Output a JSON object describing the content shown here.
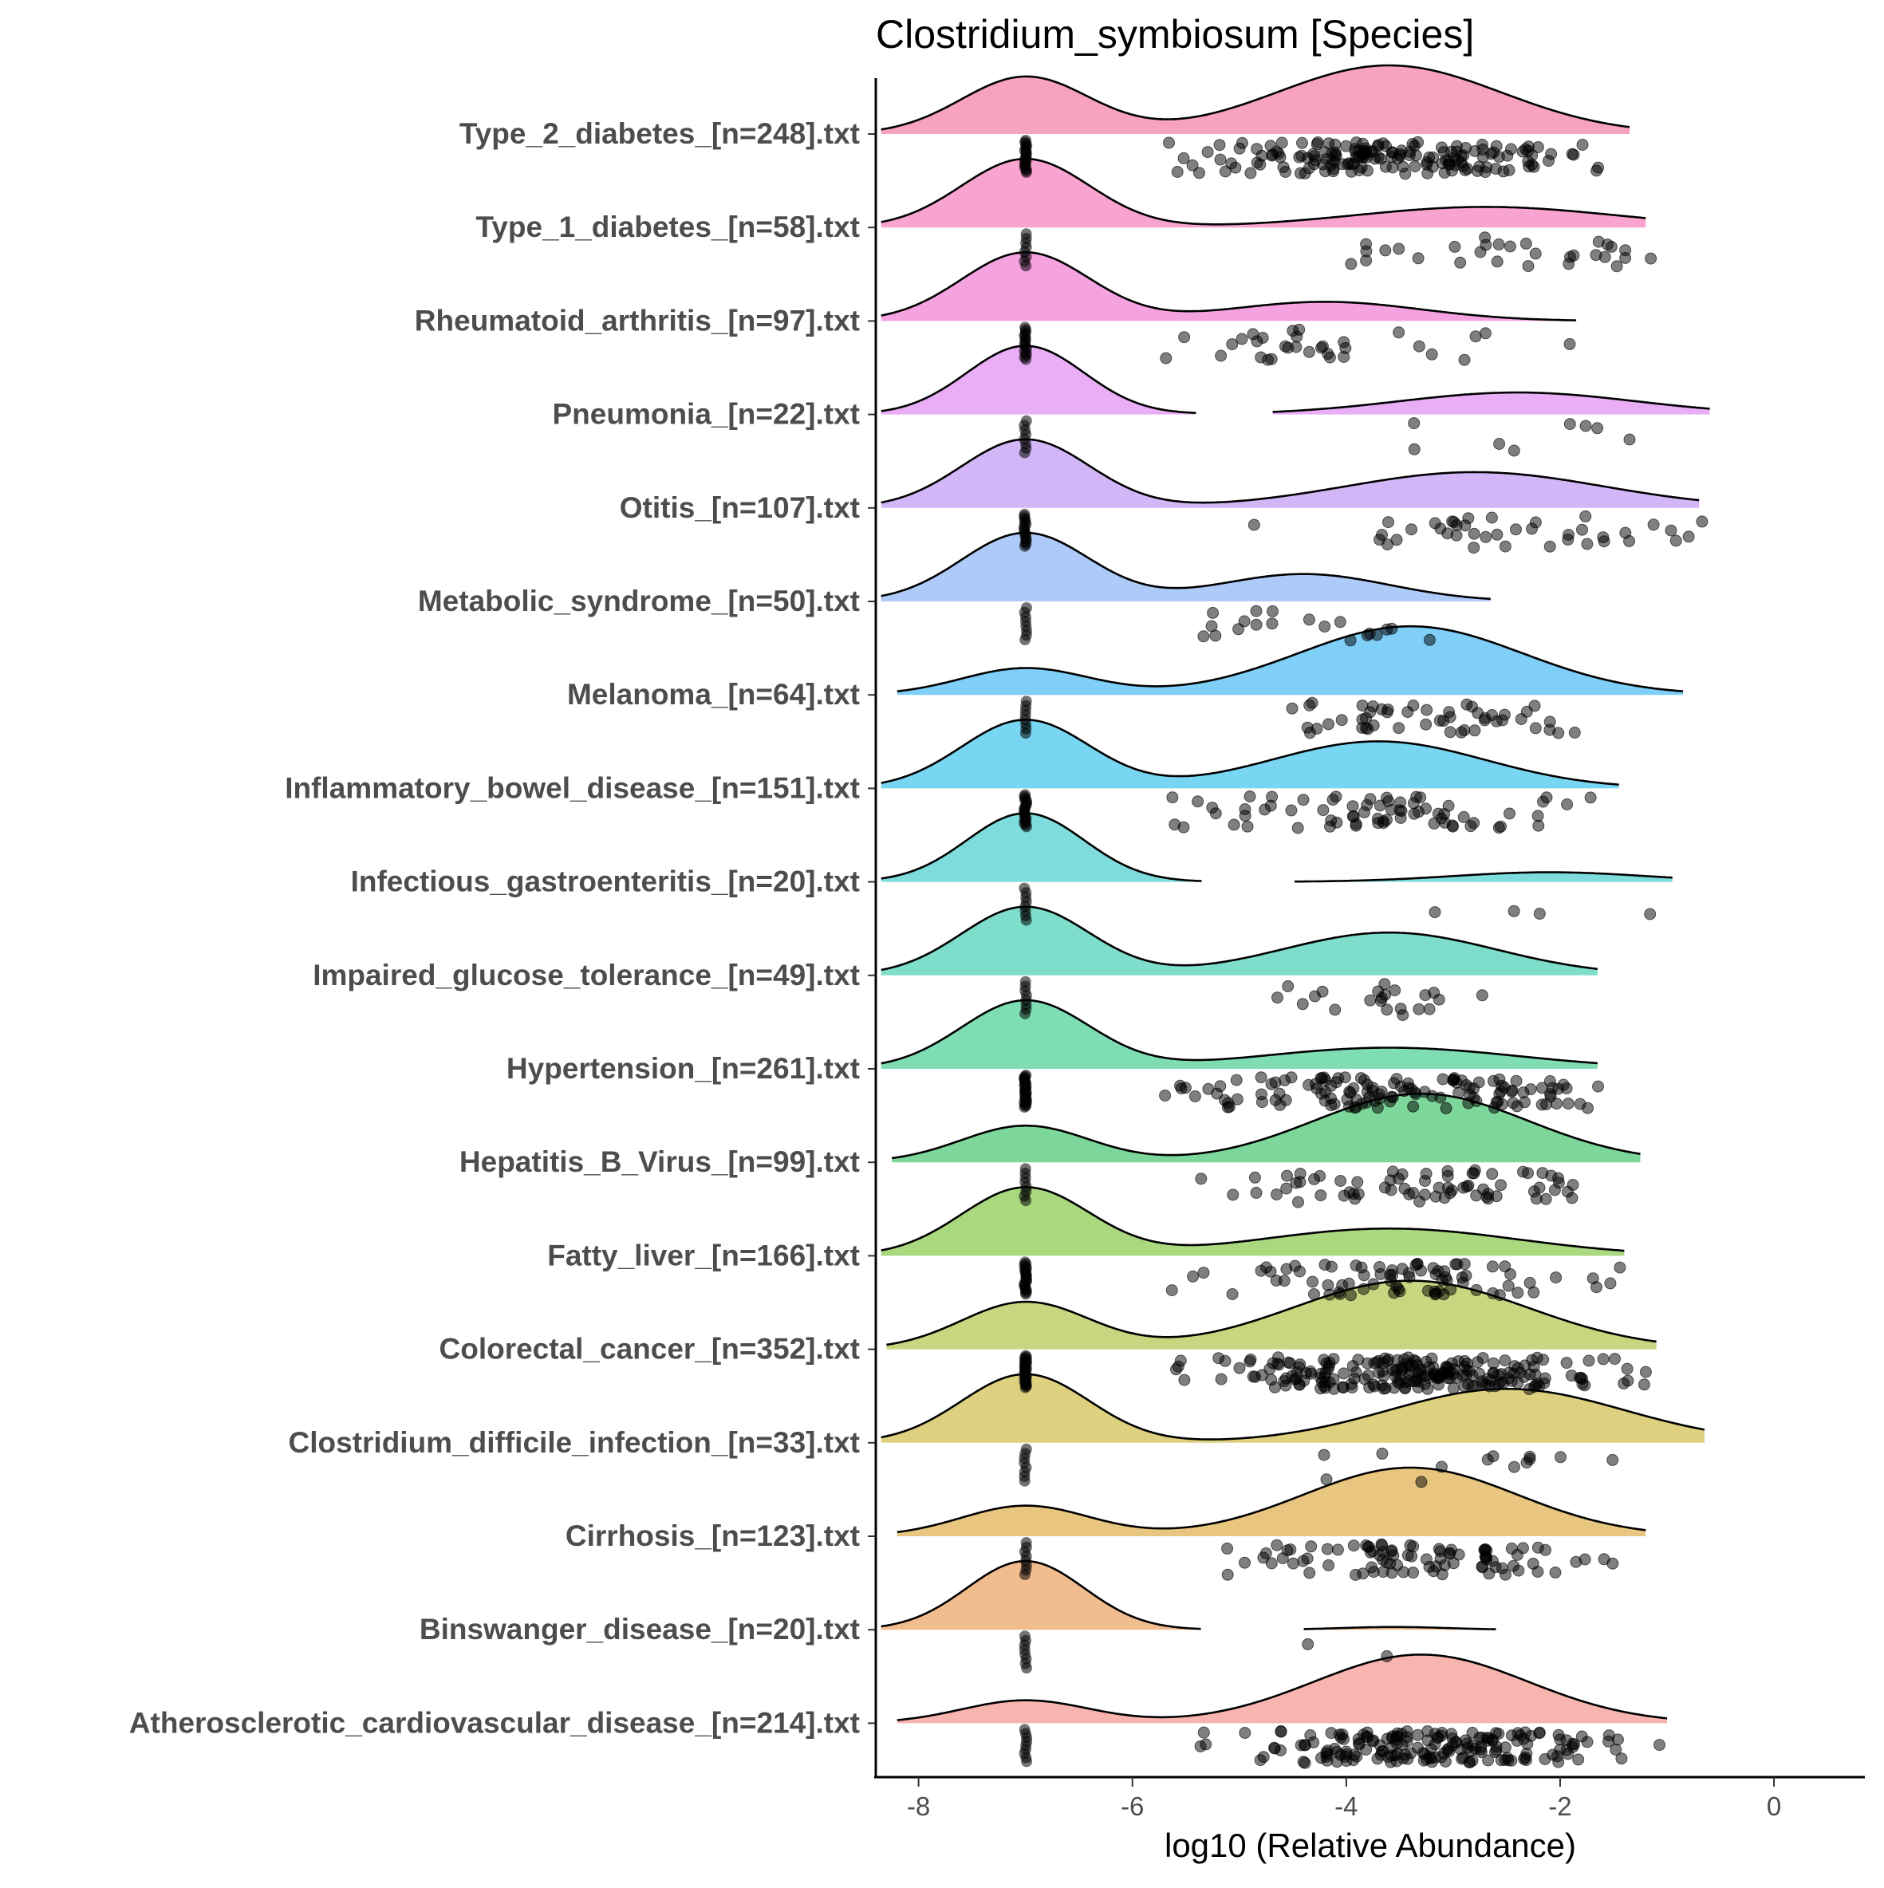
{
  "chart_data": {
    "type": "raincloud",
    "title": "Clostridium_symbiosum [Species]",
    "xlabel": "log10 (Relative Abundance)",
    "ylabel": "",
    "xlim": [
      -8.4,
      0.85
    ],
    "x_ticks": [
      -8,
      -6,
      -4,
      -2,
      0
    ],
    "x_tick_labels": [
      "-8",
      "-6",
      "-4",
      "-2",
      "0"
    ],
    "zero_value": -7,
    "grid": false,
    "legend": "none",
    "series": [
      {
        "name": "Type_2_diabetes_[n=248].txt",
        "n": 248,
        "color": "#F8A3BE",
        "n_nonzero": 170,
        "density": {
          "zero_w": 0.6,
          "zero_sd": 0.6,
          "high_mean": -3.6,
          "high_sd": 1.05,
          "high_w": 0.72,
          "xmin": -8.35,
          "xmax": -1.35
        }
      },
      {
        "name": "Type_1_diabetes_[n=58].txt",
        "n": 58,
        "color": "#F9A3D0",
        "n_nonzero": 30,
        "density": {
          "zero_w": 1.0,
          "zero_sd": 0.6,
          "high_mean": -2.7,
          "high_sd": 1.2,
          "high_w": 0.3,
          "xmin": -8.35,
          "xmax": -1.2
        }
      },
      {
        "name": "Rheumatoid_arthritis_[n=97].txt",
        "n": 97,
        "color": "#F4A2E0",
        "n_nonzero": 32,
        "density": {
          "zero_w": 1.0,
          "zero_sd": 0.6,
          "high_mean": -4.2,
          "high_sd": 0.9,
          "high_w": 0.28,
          "xmin": -8.35,
          "xmax": -1.85
        }
      },
      {
        "name": "Pneumonia_[n=22].txt",
        "n": 22,
        "color": "#E9AEF6",
        "n_nonzero": 8,
        "density": {
          "zero_w": 1.0,
          "zero_sd": 0.55,
          "high_mean": -2.4,
          "high_sd": 1.1,
          "high_w": 0.32,
          "xmin": -8.35,
          "xmax": -0.6,
          "gap": [
            -5.4,
            -4.7
          ]
        }
      },
      {
        "name": "Otitis_[n=107].txt",
        "n": 107,
        "color": "#D3B6F8",
        "n_nonzero": 40,
        "density": {
          "zero_w": 0.9,
          "zero_sd": 0.6,
          "high_mean": -2.8,
          "high_sd": 1.2,
          "high_w": 0.47,
          "xmin": -8.35,
          "xmax": -0.7
        }
      },
      {
        "name": "Metabolic_syndrome_[n=50].txt",
        "n": 50,
        "color": "#AECAF8",
        "n_nonzero": 20,
        "density": {
          "zero_w": 1.0,
          "zero_sd": 0.6,
          "high_mean": -4.4,
          "high_sd": 0.8,
          "high_w": 0.4,
          "xmin": -8.35,
          "xmax": -2.65
        }
      },
      {
        "name": "Melanoma_[n=64].txt",
        "n": 64,
        "color": "#7FCFF8",
        "n_nonzero": 50,
        "density": {
          "zero_w": 0.35,
          "zero_sd": 0.6,
          "high_mean": -3.4,
          "high_sd": 1.05,
          "high_w": 0.9,
          "xmin": -8.2,
          "xmax": -0.85
        }
      },
      {
        "name": "Inflammatory_bowel_disease_[n=151].txt",
        "n": 151,
        "color": "#78D6F2",
        "n_nonzero": 70,
        "density": {
          "zero_w": 0.8,
          "zero_sd": 0.6,
          "high_mean": -3.7,
          "high_sd": 1.0,
          "high_w": 0.55,
          "xmin": -8.35,
          "xmax": -1.45
        }
      },
      {
        "name": "Infectious_gastroenteritis_[n=20].txt",
        "n": 20,
        "color": "#7EDCDC",
        "n_nonzero": 4,
        "density": {
          "zero_w": 1.0,
          "zero_sd": 0.55,
          "high_mean": -2.1,
          "high_sd": 0.9,
          "high_w": 0.14,
          "xmin": -8.35,
          "xmax": -0.95,
          "gap": [
            -5.35,
            -4.5
          ]
        }
      },
      {
        "name": "Impaired_glucose_tolerance_[n=49].txt",
        "n": 49,
        "color": "#7EDECB",
        "n_nonzero": 22,
        "density": {
          "zero_w": 0.8,
          "zero_sd": 0.6,
          "high_mean": -3.6,
          "high_sd": 1.0,
          "high_w": 0.5,
          "xmin": -8.35,
          "xmax": -1.65
        }
      },
      {
        "name": "Hypertension_[n=261].txt",
        "n": 261,
        "color": "#7EDDB3",
        "n_nonzero": 130,
        "density": {
          "zero_w": 1.0,
          "zero_sd": 0.6,
          "high_mean": -3.6,
          "high_sd": 1.2,
          "high_w": 0.31,
          "xmin": -8.35,
          "xmax": -1.65
        }
      },
      {
        "name": "Hepatitis_B_Virus_[n=99].txt",
        "n": 99,
        "color": "#7DD79A",
        "n_nonzero": 70,
        "density": {
          "zero_w": 0.4,
          "zero_sd": 0.6,
          "high_mean": -3.3,
          "high_sd": 1.0,
          "high_w": 0.75,
          "xmin": -8.25,
          "xmax": -1.25
        }
      },
      {
        "name": "Fatty_liver_[n=166].txt",
        "n": 166,
        "color": "#A9D87F",
        "n_nonzero": 80,
        "density": {
          "zero_w": 1.0,
          "zero_sd": 0.6,
          "high_mean": -3.6,
          "high_sd": 1.2,
          "high_w": 0.4,
          "xmin": -8.35,
          "xmax": -1.4
        }
      },
      {
        "name": "Colorectal_cancer_[n=352].txt",
        "n": 352,
        "color": "#C7D67F",
        "n_nonzero": 230,
        "density": {
          "zero_w": 0.55,
          "zero_sd": 0.6,
          "high_mean": -3.4,
          "high_sd": 1.1,
          "high_w": 0.8,
          "xmin": -8.3,
          "xmax": -1.1
        }
      },
      {
        "name": "Clostridium_difficile_infection_[n=33].txt",
        "n": 33,
        "color": "#DDD07E",
        "n_nonzero": 13,
        "density": {
          "zero_w": 0.7,
          "zero_sd": 0.6,
          "high_mean": -2.5,
          "high_sd": 1.1,
          "high_w": 0.55,
          "xmin": -8.35,
          "xmax": -0.65
        }
      },
      {
        "name": "Cirrhosis_[n=123].txt",
        "n": 123,
        "color": "#E9C67F",
        "n_nonzero": 90,
        "density": {
          "zero_w": 0.4,
          "zero_sd": 0.6,
          "high_mean": -3.4,
          "high_sd": 1.0,
          "high_w": 0.9,
          "xmin": -8.2,
          "xmax": -1.2
        }
      },
      {
        "name": "Binswanger_disease_[n=20].txt",
        "n": 20,
        "color": "#F2BD8E",
        "n_nonzero": 2,
        "density": {
          "zero_w": 1.0,
          "zero_sd": 0.55,
          "high_mean": -3.55,
          "high_sd": 0.5,
          "high_w": 0.04,
          "xmin": -8.35,
          "xmax": -2.6,
          "gap": [
            -5.35,
            -4.4
          ]
        }
      },
      {
        "name": "Atherosclerotic_cardiovascular_disease_[n=214].txt",
        "n": 214,
        "color": "#F8B4AE",
        "n_nonzero": 180,
        "density": {
          "zero_w": 0.3,
          "zero_sd": 0.6,
          "high_mean": -3.3,
          "high_sd": 1.0,
          "high_w": 0.9,
          "xmin": -8.2,
          "xmax": -1.0
        }
      }
    ]
  }
}
